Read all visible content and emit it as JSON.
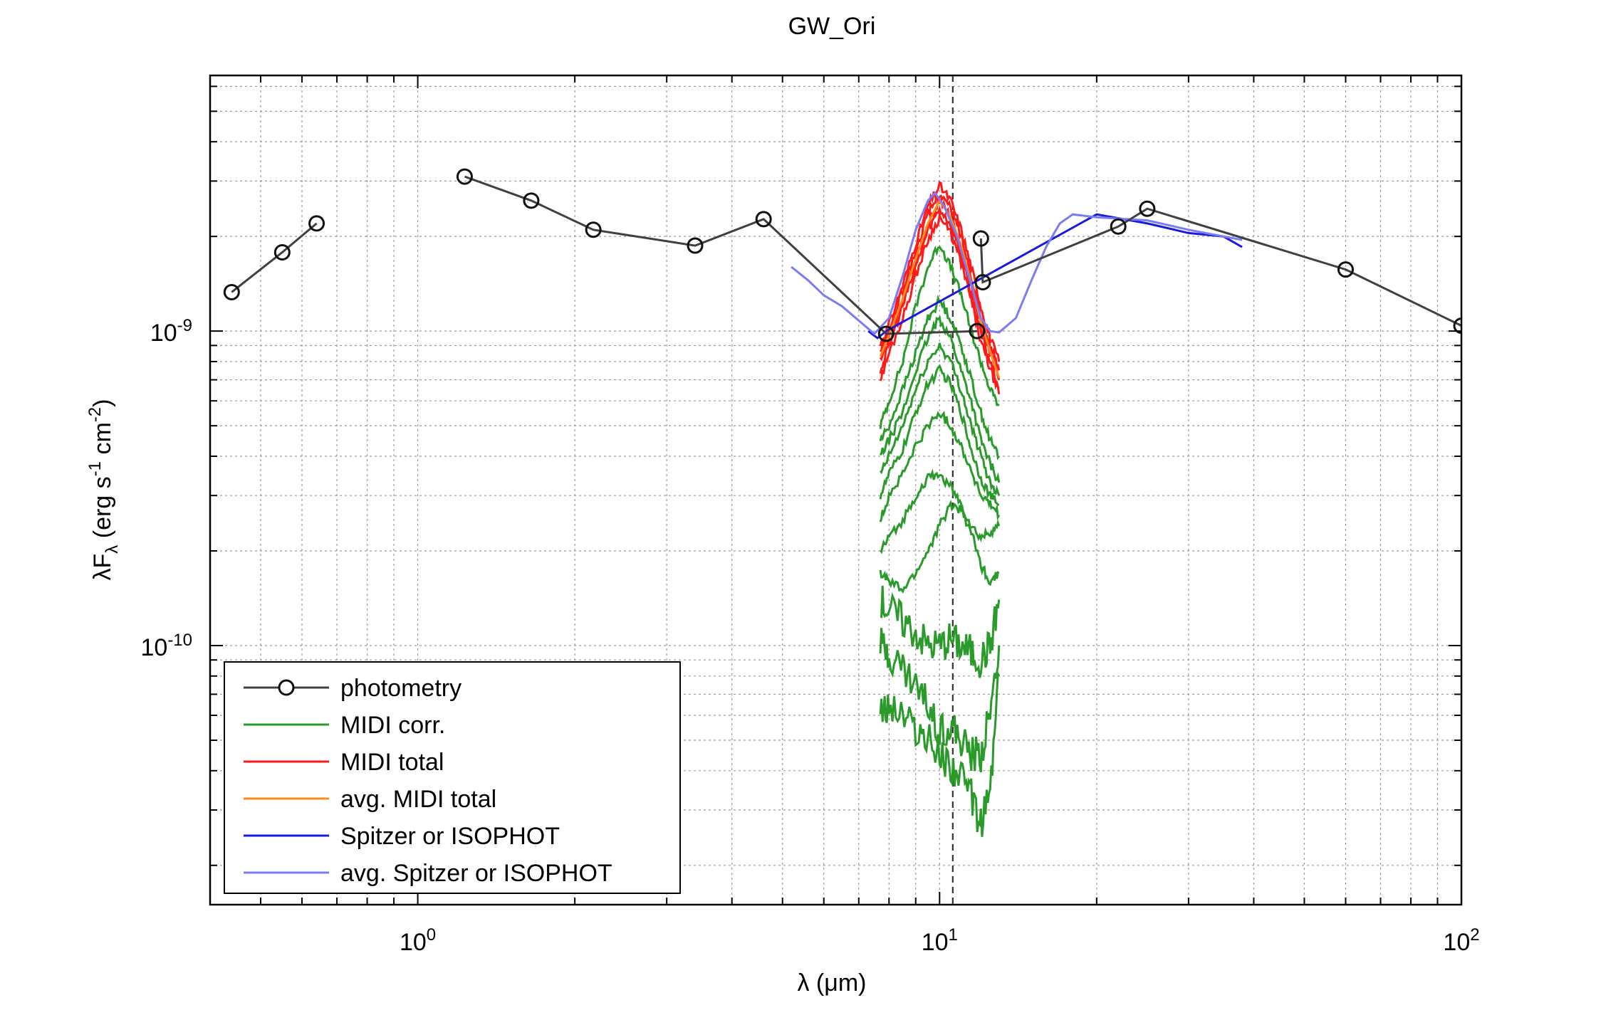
{
  "chart_data": {
    "type": "line",
    "title": "GW_Ori",
    "xlabel": "λ (μm)",
    "ylabel": "λF_λ (erg s^-1 cm^-2)",
    "xscale": "log",
    "yscale": "log",
    "xlim": [
      0.4,
      100
    ],
    "ylim": [
      1.5e-11,
      6.5e-09
    ],
    "grid": true,
    "x_ticks": [
      {
        "value": 1,
        "base": "10",
        "exp": "0"
      },
      {
        "value": 10,
        "base": "10",
        "exp": "1"
      },
      {
        "value": 100,
        "base": "10",
        "exp": "2"
      }
    ],
    "y_ticks": [
      {
        "value": 1e-10,
        "base": "10",
        "exp": "-10"
      },
      {
        "value": 1e-09,
        "base": "10",
        "exp": "-9"
      }
    ],
    "vline_x": 10.6,
    "legend_position": "lower-left",
    "series": [
      {
        "name": "photometry",
        "kind": "photometry",
        "color": "#404040",
        "segments": [
          [
            [
              0.44,
              1.33e-09
            ],
            [
              0.55,
              1.78e-09
            ],
            [
              0.64,
              2.2e-09
            ]
          ],
          [
            [
              1.23,
              3.1e-09
            ],
            [
              1.65,
              2.6e-09
            ],
            [
              2.17,
              2.1e-09
            ],
            [
              3.4,
              1.87e-09
            ],
            [
              4.6,
              2.27e-09
            ],
            [
              7.9,
              9.8e-10
            ],
            [
              11.8,
              1e-09
            ]
          ],
          [
            [
              12.0,
              1.97e-09
            ],
            [
              12.1,
              1.43e-09
            ],
            [
              22.0,
              2.15e-09
            ],
            [
              25.0,
              2.45e-09
            ],
            [
              60.0,
              1.57e-09
            ],
            [
              100.0,
              1.04e-09
            ]
          ]
        ]
      },
      {
        "name": "MIDI corr.",
        "kind": "band",
        "color": "#2a9a2a",
        "x": [
          7.7,
          8.0,
          8.5,
          9.0,
          9.5,
          10.0,
          10.5,
          11.0,
          11.5,
          12.0,
          12.5,
          13.0
        ],
        "lines": [
          [
            5e-10,
            6e-10,
            8e-10,
            1.2e-09,
            1.6e-09,
            1.9e-09,
            1.6e-09,
            1.3e-09,
            1e-09,
            8e-10,
            6.5e-10,
            5.8e-10
          ],
          [
            4.5e-10,
            5e-10,
            6.5e-10,
            8.5e-10,
            1.1e-09,
            1.25e-09,
            1.1e-09,
            9e-10,
            7e-10,
            5.5e-10,
            4.5e-10,
            4e-10
          ],
          [
            4e-10,
            4.5e-10,
            5.5e-10,
            7.5e-10,
            9.5e-10,
            1.1e-09,
            9.5e-10,
            7.5e-10,
            6e-10,
            4.5e-10,
            3.8e-10,
            3.3e-10
          ],
          [
            3.5e-10,
            4e-10,
            5e-10,
            6.5e-10,
            8e-10,
            9e-10,
            8e-10,
            6.5e-10,
            5e-10,
            4e-10,
            3.3e-10,
            3e-10
          ],
          [
            3e-10,
            3.5e-10,
            4.2e-10,
            5.5e-10,
            6.8e-10,
            7.5e-10,
            6.8e-10,
            5.5e-10,
            4.2e-10,
            3.4e-10,
            3e-10,
            2.8e-10
          ],
          [
            2.5e-10,
            3e-10,
            3.5e-10,
            4.3e-10,
            5e-10,
            5.5e-10,
            5e-10,
            4.3e-10,
            3.6e-10,
            3e-10,
            2.8e-10,
            2.6e-10
          ],
          [
            2e-10,
            2.2e-10,
            2.5e-10,
            3e-10,
            3.4e-10,
            3.5e-10,
            3.2e-10,
            2.8e-10,
            2.4e-10,
            2.2e-10,
            2.3e-10,
            2.4e-10
          ],
          [
            1.7e-10,
            1.6e-10,
            1.5e-10,
            1.7e-10,
            2e-10,
            2.4e-10,
            2.8e-10,
            2.7e-10,
            2.3e-10,
            1.8e-10,
            1.6e-10,
            1.7e-10
          ],
          [
            1.4e-10,
            1.3e-10,
            1.2e-10,
            1.1e-10,
            1e-10,
            1e-10,
            1.05e-10,
            1e-10,
            9.5e-11,
            9e-11,
            1e-10,
            1.4e-10
          ],
          [
            1e-10,
            9.5e-11,
            8.5e-11,
            7.5e-11,
            6.5e-11,
            5.5e-11,
            5.5e-11,
            5e-11,
            4.5e-11,
            4.5e-11,
            6e-11,
            1e-10
          ],
          [
            6e-11,
            6.5e-11,
            6e-11,
            5.5e-11,
            5e-11,
            4.5e-11,
            4.2e-11,
            3.8e-11,
            3.3e-11,
            2.7e-11,
            3.5e-11,
            8e-11
          ]
        ]
      },
      {
        "name": "MIDI total",
        "kind": "band",
        "color": "#ff1a1a",
        "x": [
          7.7,
          8.0,
          8.5,
          9.0,
          9.5,
          10.0,
          10.5,
          11.0,
          11.5,
          12.0,
          12.5,
          13.0
        ],
        "lines": [
          [
            9e-10,
            1.05e-09,
            1.4e-09,
            1.9e-09,
            2.5e-09,
            2.9e-09,
            2.6e-09,
            2.1e-09,
            1.6e-09,
            1.2e-09,
            9.5e-10,
            8e-10
          ],
          [
            8.5e-10,
            1e-09,
            1.35e-09,
            1.8e-09,
            2.35e-09,
            2.75e-09,
            2.45e-09,
            2e-09,
            1.5e-09,
            1.1e-09,
            9e-10,
            7.5e-10
          ],
          [
            8e-10,
            9.5e-10,
            1.25e-09,
            1.7e-09,
            2.2e-09,
            2.6e-09,
            2.3e-09,
            1.85e-09,
            1.4e-09,
            1.05e-09,
            8.5e-10,
            7e-10
          ],
          [
            7.5e-10,
            9e-10,
            1.2e-09,
            1.6e-09,
            2.1e-09,
            2.45e-09,
            2.2e-09,
            1.75e-09,
            1.3e-09,
            9.8e-10,
            8e-10,
            6.6e-10
          ],
          [
            7e-10,
            8.5e-10,
            1.1e-09,
            1.5e-09,
            1.95e-09,
            2.3e-09,
            2.05e-09,
            1.65e-09,
            1.25e-09,
            9.2e-10,
            7.6e-10,
            6.3e-10
          ]
        ]
      },
      {
        "name": "avg. MIDI total",
        "kind": "line",
        "color": "#ff8c1a",
        "points": [
          [
            7.7,
            8.3e-10
          ],
          [
            8.0,
            9.7e-10
          ],
          [
            8.5,
            1.27e-09
          ],
          [
            9.0,
            1.7e-09
          ],
          [
            9.5,
            2.2e-09
          ],
          [
            10.0,
            2.6e-09
          ],
          [
            10.5,
            2.3e-09
          ],
          [
            11.0,
            1.87e-09
          ],
          [
            11.5,
            1.42e-09
          ],
          [
            12.0,
            1.07e-09
          ],
          [
            12.5,
            8.6e-10
          ],
          [
            13.0,
            7.1e-10
          ]
        ]
      },
      {
        "name": "Spitzer or ISOPHOT",
        "kind": "line",
        "color": "#1a1adf",
        "points": [
          [
            7.3,
            1e-09
          ],
          [
            7.6,
            9.5e-10
          ],
          [
            7.9,
            1e-09
          ],
          [
            20.0,
            2.35e-09
          ],
          [
            25.0,
            2.2e-09
          ],
          [
            30.0,
            2.05e-09
          ],
          [
            35.0,
            2e-09
          ],
          [
            38.0,
            1.85e-09
          ]
        ]
      },
      {
        "name": "avg. Spitzer or ISOPHOT",
        "kind": "line",
        "color": "#7b7bf2",
        "points": [
          [
            5.2,
            1.6e-09
          ],
          [
            5.6,
            1.45e-09
          ],
          [
            6.0,
            1.3e-09
          ],
          [
            6.5,
            1.2e-09
          ],
          [
            7.0,
            1.08e-09
          ],
          [
            7.5,
            9.8e-10
          ],
          [
            8.0,
            1.1e-09
          ],
          [
            8.5,
            1.5e-09
          ],
          [
            9.0,
            2.1e-09
          ],
          [
            9.5,
            2.6e-09
          ],
          [
            9.8,
            2.75e-09
          ],
          [
            10.2,
            2.5e-09
          ],
          [
            10.8,
            2e-09
          ],
          [
            11.5,
            1.4e-09
          ],
          [
            12.0,
            1.1e-09
          ],
          [
            12.5,
            1e-09
          ],
          [
            13.0,
            9.9e-10
          ],
          [
            14.0,
            1.1e-09
          ],
          [
            15.0,
            1.45e-09
          ],
          [
            16.0,
            1.85e-09
          ],
          [
            17.0,
            2.2e-09
          ],
          [
            18.0,
            2.35e-09
          ],
          [
            20.0,
            2.3e-09
          ],
          [
            25.0,
            2.25e-09
          ],
          [
            30.0,
            2.1e-09
          ],
          [
            35.0,
            2e-09
          ],
          [
            38.0,
            1.95e-09
          ]
        ]
      }
    ]
  }
}
